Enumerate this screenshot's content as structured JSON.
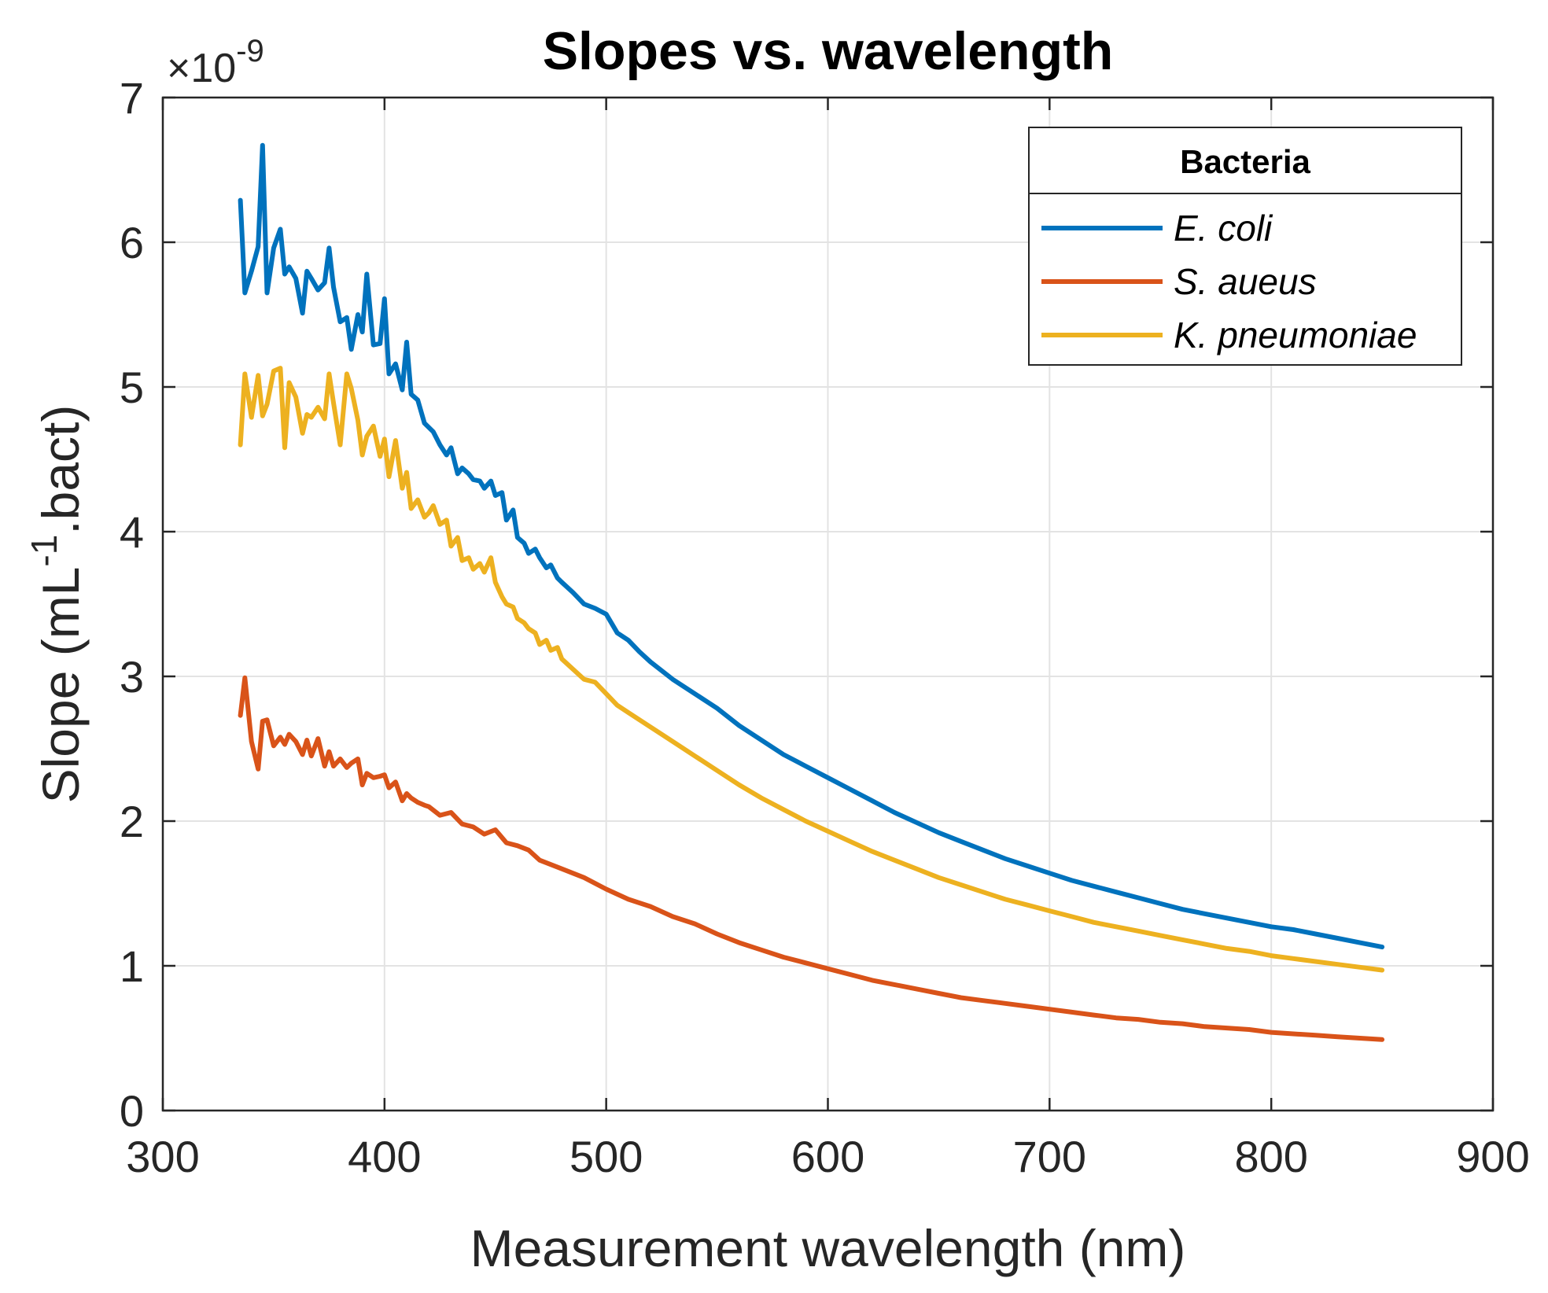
{
  "chart_data": {
    "type": "line",
    "title": "Slopes vs. wavelength",
    "xlabel": "Measurement wavelength (nm)",
    "ylabel_main": "Slope (mL",
    "ylabel_sup": "-1",
    "ylabel_tail": ".bact)",
    "exponent_base": "×10",
    "exponent_power": "-9",
    "xlim": [
      300,
      900
    ],
    "ylim": [
      0,
      7
    ],
    "xticks": [
      300,
      400,
      500,
      600,
      700,
      800,
      900
    ],
    "yticks": [
      0,
      1,
      2,
      3,
      4,
      5,
      6,
      7
    ],
    "grid": true,
    "legend": {
      "title": "Bacteria",
      "position": "top-right"
    },
    "series": [
      {
        "name": "E. coli",
        "color": "#0072BD",
        "x": [
          335,
          337,
          340,
          343,
          345,
          347,
          350,
          353,
          355,
          357,
          360,
          363,
          365,
          367,
          370,
          373,
          375,
          377,
          380,
          383,
          385,
          388,
          390,
          392,
          395,
          398,
          400,
          402,
          405,
          408,
          410,
          412,
          415,
          418,
          420,
          422,
          425,
          428,
          430,
          433,
          435,
          438,
          440,
          443,
          445,
          448,
          450,
          453,
          455,
          458,
          460,
          463,
          465,
          468,
          470,
          473,
          475,
          478,
          480,
          485,
          490,
          495,
          500,
          505,
          510,
          515,
          520,
          530,
          540,
          550,
          560,
          570,
          580,
          590,
          600,
          610,
          620,
          630,
          640,
          650,
          660,
          670,
          680,
          690,
          700,
          710,
          720,
          730,
          740,
          750,
          760,
          770,
          780,
          790,
          800,
          810,
          820,
          830,
          840,
          850
        ],
        "y": [
          6.29,
          5.65,
          5.8,
          5.97,
          6.67,
          5.65,
          5.96,
          6.09,
          5.78,
          5.83,
          5.75,
          5.51,
          5.8,
          5.75,
          5.67,
          5.72,
          5.96,
          5.69,
          5.45,
          5.48,
          5.26,
          5.5,
          5.38,
          5.78,
          5.29,
          5.3,
          5.61,
          5.09,
          5.16,
          4.98,
          5.31,
          4.95,
          4.91,
          4.75,
          4.72,
          4.69,
          4.6,
          4.53,
          4.58,
          4.4,
          4.44,
          4.4,
          4.36,
          4.35,
          4.3,
          4.35,
          4.25,
          4.27,
          4.08,
          4.15,
          3.96,
          3.92,
          3.85,
          3.88,
          3.82,
          3.75,
          3.77,
          3.68,
          3.65,
          3.58,
          3.5,
          3.47,
          3.43,
          3.3,
          3.25,
          3.17,
          3.1,
          2.98,
          2.88,
          2.78,
          2.66,
          2.56,
          2.46,
          2.38,
          2.3,
          2.22,
          2.14,
          2.06,
          1.99,
          1.92,
          1.86,
          1.8,
          1.74,
          1.69,
          1.64,
          1.59,
          1.55,
          1.51,
          1.47,
          1.43,
          1.39,
          1.36,
          1.33,
          1.3,
          1.27,
          1.25,
          1.22,
          1.19,
          1.16,
          1.13
        ]
      },
      {
        "name": "S. aueus",
        "color": "#D95319",
        "x": [
          335,
          337,
          340,
          343,
          345,
          347,
          350,
          353,
          355,
          357,
          360,
          363,
          365,
          367,
          370,
          373,
          375,
          377,
          380,
          383,
          385,
          388,
          390,
          392,
          395,
          398,
          400,
          402,
          405,
          408,
          410,
          412,
          415,
          418,
          420,
          425,
          430,
          435,
          440,
          445,
          450,
          455,
          460,
          465,
          470,
          475,
          480,
          490,
          500,
          510,
          520,
          530,
          540,
          550,
          560,
          570,
          580,
          590,
          600,
          610,
          620,
          630,
          640,
          650,
          660,
          670,
          680,
          690,
          700,
          710,
          720,
          730,
          740,
          750,
          760,
          770,
          780,
          790,
          800,
          810,
          820,
          830,
          840,
          850
        ],
        "y": [
          2.73,
          2.99,
          2.55,
          2.36,
          2.69,
          2.7,
          2.52,
          2.58,
          2.53,
          2.6,
          2.55,
          2.46,
          2.56,
          2.45,
          2.57,
          2.38,
          2.48,
          2.38,
          2.43,
          2.37,
          2.4,
          2.43,
          2.25,
          2.33,
          2.3,
          2.31,
          2.32,
          2.23,
          2.27,
          2.14,
          2.19,
          2.16,
          2.13,
          2.11,
          2.1,
          2.04,
          2.06,
          1.98,
          1.96,
          1.91,
          1.94,
          1.85,
          1.83,
          1.8,
          1.73,
          1.7,
          1.67,
          1.61,
          1.53,
          1.46,
          1.41,
          1.34,
          1.29,
          1.22,
          1.16,
          1.11,
          1.06,
          1.02,
          0.98,
          0.94,
          0.9,
          0.87,
          0.84,
          0.81,
          0.78,
          0.76,
          0.74,
          0.72,
          0.7,
          0.68,
          0.66,
          0.64,
          0.63,
          0.61,
          0.6,
          0.58,
          0.57,
          0.56,
          0.54,
          0.53,
          0.52,
          0.51,
          0.5,
          0.49
        ]
      },
      {
        "name": "K. pneumoniae",
        "color": "#EDB120",
        "x": [
          335,
          337,
          340,
          343,
          345,
          347,
          350,
          353,
          355,
          357,
          360,
          363,
          365,
          367,
          370,
          373,
          375,
          377,
          380,
          383,
          385,
          388,
          390,
          392,
          395,
          398,
          400,
          402,
          405,
          408,
          410,
          412,
          415,
          418,
          420,
          422,
          425,
          428,
          430,
          433,
          435,
          438,
          440,
          443,
          445,
          448,
          450,
          453,
          455,
          458,
          460,
          463,
          465,
          468,
          470,
          473,
          475,
          478,
          480,
          485,
          490,
          495,
          500,
          505,
          510,
          520,
          530,
          540,
          550,
          560,
          570,
          580,
          590,
          600,
          610,
          620,
          630,
          640,
          650,
          660,
          670,
          680,
          690,
          700,
          710,
          720,
          730,
          740,
          750,
          760,
          770,
          780,
          790,
          800,
          810,
          820,
          830,
          840,
          850
        ],
        "y": [
          4.6,
          5.09,
          4.79,
          5.08,
          4.8,
          4.88,
          5.11,
          5.13,
          4.58,
          5.03,
          4.93,
          4.68,
          4.81,
          4.79,
          4.86,
          4.78,
          5.09,
          4.89,
          4.6,
          5.09,
          4.99,
          4.77,
          4.53,
          4.66,
          4.73,
          4.52,
          4.64,
          4.38,
          4.63,
          4.3,
          4.41,
          4.16,
          4.22,
          4.1,
          4.13,
          4.18,
          4.05,
          4.08,
          3.9,
          3.96,
          3.8,
          3.82,
          3.74,
          3.78,
          3.72,
          3.82,
          3.65,
          3.55,
          3.5,
          3.48,
          3.4,
          3.37,
          3.33,
          3.3,
          3.22,
          3.25,
          3.18,
          3.2,
          3.12,
          3.05,
          2.98,
          2.96,
          2.88,
          2.8,
          2.75,
          2.65,
          2.55,
          2.45,
          2.35,
          2.25,
          2.16,
          2.08,
          2.0,
          1.93,
          1.86,
          1.79,
          1.73,
          1.67,
          1.61,
          1.56,
          1.51,
          1.46,
          1.42,
          1.38,
          1.34,
          1.3,
          1.27,
          1.24,
          1.21,
          1.18,
          1.15,
          1.12,
          1.1,
          1.07,
          1.05,
          1.03,
          1.01,
          0.99,
          0.97
        ]
      }
    ]
  }
}
